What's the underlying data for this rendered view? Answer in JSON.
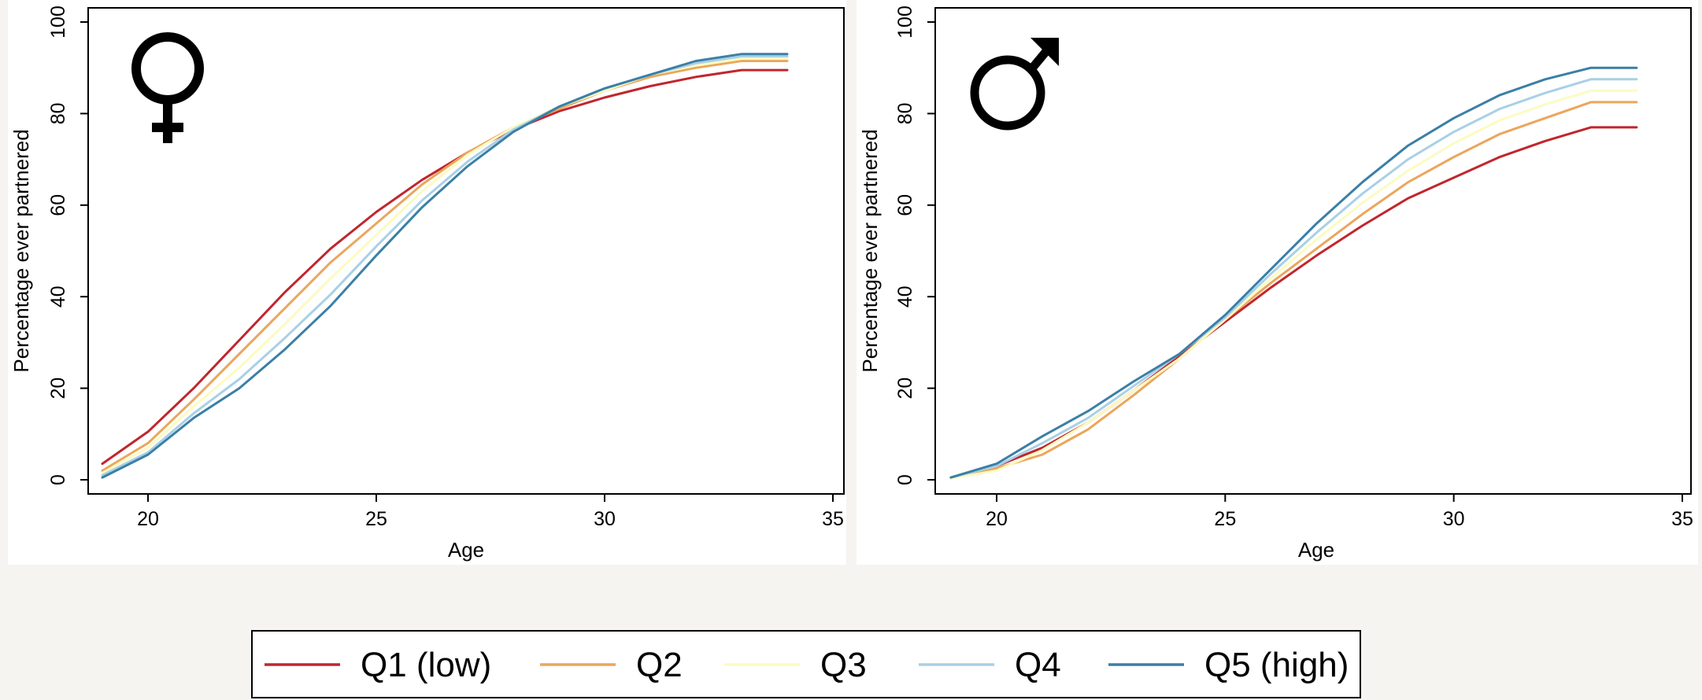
{
  "colors": {
    "Q1 (low)": "#c0262d",
    "Q2": "#eba65c",
    "Q3": "#fbfbc2",
    "Q4": "#a9d0e6",
    "Q5 (high)": "#3b7fa6"
  },
  "legend": {
    "placement": "bottom",
    "items": [
      "Q1 (low)",
      "Q2",
      "Q3",
      "Q4",
      "Q5 (high)"
    ]
  },
  "chart_data": [
    {
      "type": "line",
      "symbol": "female-symbol",
      "xlabel": "Age",
      "ylabel": "Percentage ever partnered",
      "xlim": [
        19,
        35
      ],
      "ylim": [
        0,
        100
      ],
      "xticks": [
        "20",
        "25",
        "30",
        "35"
      ],
      "yticks": [
        "0",
        "20",
        "40",
        "60",
        "80",
        "100"
      ],
      "grid": false,
      "x": [
        19,
        20,
        21,
        22,
        23,
        24,
        25,
        26,
        27,
        28,
        29,
        30,
        31,
        32,
        33,
        34
      ],
      "series": [
        {
          "name": "Q1 (low)",
          "values": [
            3.5,
            10.5,
            20,
            30.5,
            41,
            50.5,
            58.5,
            65.5,
            71.5,
            76.5,
            80.5,
            83.5,
            86,
            88,
            89.5,
            89.5
          ]
        },
        {
          "name": "Q2",
          "values": [
            2,
            8,
            17.5,
            27.5,
            37.5,
            47.5,
            56,
            64.5,
            71.5,
            77,
            81,
            85,
            88,
            90,
            91.5,
            91.5
          ]
        },
        {
          "name": "Q3",
          "values": [
            1.5,
            7,
            16,
            24.5,
            34,
            44,
            53.5,
            63,
            71,
            77,
            81.5,
            85,
            88.5,
            90.5,
            92,
            92
          ]
        },
        {
          "name": "Q4",
          "values": [
            1,
            6,
            14.5,
            22,
            31,
            40.5,
            51,
            61,
            69.5,
            76.5,
            81.5,
            85.5,
            88.5,
            91,
            92.5,
            92.5
          ]
        },
        {
          "name": "Q5 (high)",
          "values": [
            0.5,
            5.5,
            13.5,
            20,
            28.5,
            38,
            49,
            59.5,
            68.5,
            76,
            81.5,
            85.5,
            88.5,
            91.5,
            93,
            93
          ]
        }
      ]
    },
    {
      "type": "line",
      "symbol": "male-symbol",
      "xlabel": "Age",
      "ylabel": "Percentage ever partnered",
      "xlim": [
        19,
        35
      ],
      "ylim": [
        0,
        100
      ],
      "xticks": [
        "20",
        "25",
        "30",
        "35"
      ],
      "yticks": [
        "0",
        "20",
        "40",
        "60",
        "80",
        "100"
      ],
      "grid": false,
      "x": [
        19,
        20,
        21,
        22,
        23,
        24,
        25,
        26,
        27,
        28,
        29,
        30,
        31,
        32,
        33,
        34
      ],
      "series": [
        {
          "name": "Q1 (low)",
          "values": [
            0.5,
            3,
            7,
            12.5,
            19.5,
            27,
            34.5,
            42,
            49,
            55.5,
            61.5,
            66,
            70.5,
            74,
            77,
            77
          ]
        },
        {
          "name": "Q2",
          "values": [
            0.3,
            2.5,
            5.5,
            11,
            18.5,
            26.5,
            35,
            43,
            50.5,
            58,
            65,
            70.5,
            75.5,
            79,
            82.5,
            82.5
          ]
        },
        {
          "name": "Q3",
          "values": [
            0.3,
            2,
            6.5,
            12.5,
            19.5,
            26.5,
            35,
            44,
            52.5,
            60.5,
            67.5,
            73.5,
            78.5,
            82,
            85,
            85
          ]
        },
        {
          "name": "Q4",
          "values": [
            0.5,
            3,
            8,
            13.5,
            20.5,
            27.5,
            35.5,
            45,
            54,
            62.5,
            70,
            76,
            81,
            84.5,
            87.5,
            87.5
          ]
        },
        {
          "name": "Q5 (high)",
          "values": [
            0.5,
            3.5,
            9.5,
            15,
            21.5,
            27.5,
            36,
            46,
            56,
            65,
            73,
            79,
            84,
            87.5,
            90,
            90
          ]
        }
      ]
    }
  ]
}
